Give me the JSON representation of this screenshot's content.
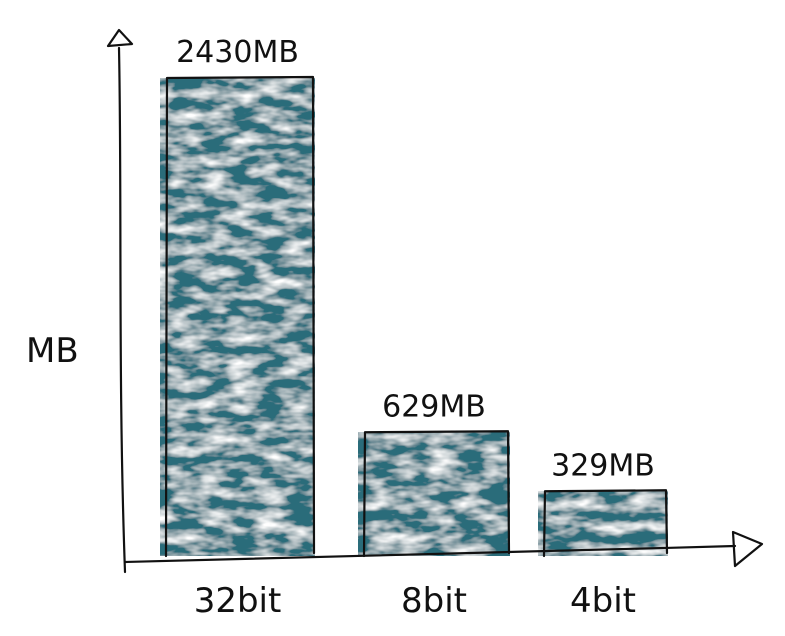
{
  "chart_data": {
    "type": "bar",
    "categories": [
      "32bit",
      "8bit",
      "4bit"
    ],
    "values": [
      2430,
      629,
      329
    ],
    "data_labels": [
      "2430MB",
      "629MB",
      "329MB"
    ],
    "title": "",
    "xlabel": "",
    "ylabel": "MB",
    "ylim": [
      0,
      2500
    ],
    "grid": false,
    "legend": "none",
    "colors": {
      "bar": "#2a6c7a",
      "bar_light": "#cfe2e6",
      "ink": "#111111"
    }
  }
}
